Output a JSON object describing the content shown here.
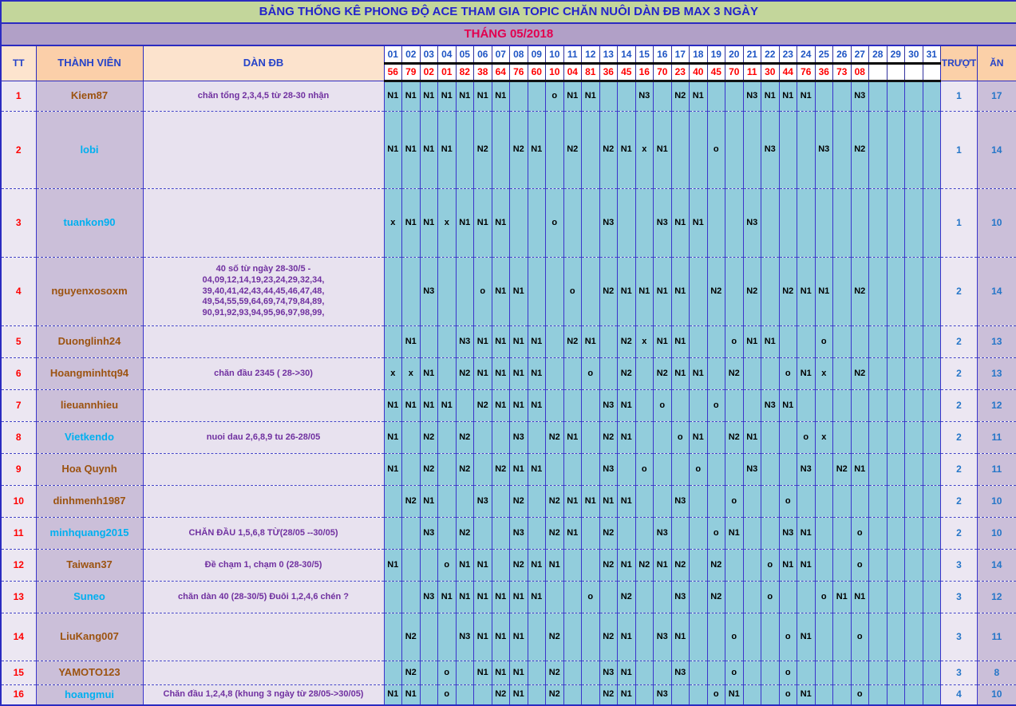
{
  "title": "BẢNG THỐNG KÊ PHONG ĐỘ ACE THAM GIA TOPIC CHĂN NUÔI DÀN ĐB MAX 3 NGÀY",
  "month": "THÁNG 05/2018",
  "headers": {
    "tt": "TT",
    "member": "THÀNH VIÊN",
    "dandb": "DÀN ĐB",
    "truot": "TRƯỢT",
    "an": "ĂN"
  },
  "days": [
    "01",
    "02",
    "03",
    "04",
    "05",
    "06",
    "07",
    "08",
    "09",
    "10",
    "11",
    "12",
    "13",
    "14",
    "15",
    "16",
    "17",
    "18",
    "19",
    "20",
    "21",
    "22",
    "23",
    "24",
    "25",
    "26",
    "27",
    "28",
    "29",
    "30",
    "31"
  ],
  "draw_numbers": [
    "56",
    "79",
    "02",
    "01",
    "82",
    "38",
    "64",
    "76",
    "60",
    "10",
    "04",
    "81",
    "36",
    "45",
    "16",
    "70",
    "23",
    "40",
    "45",
    "70",
    "11",
    "30",
    "44",
    "76",
    "36",
    "73",
    "08",
    "",
    "",
    "",
    ""
  ],
  "colors": {
    "title_bg": "#C3D69B",
    "title_text": "#2323CC",
    "month_bg": "#B1A0C7",
    "month_text": "#E2004F",
    "header_peach": "#FBD0A8",
    "grid_teal": "#92CDDC",
    "lavender_light": "#ECE7F2",
    "purple_light": "#CBBFD9",
    "name_brown": "#9C5310",
    "name_cyan": "#00B0F0",
    "dandb_purple": "#7030A0",
    "day_number_blue": "#1F55C4",
    "draw_number_red": "#FF0000",
    "result_blue": "#2576C8"
  },
  "rows": [
    {
      "tt": "1",
      "member": "Kiem87",
      "name_color": "brown",
      "dandb": "chăn tổng 2,3,4,5 từ 28-30 nhận",
      "cells": [
        "N1",
        "N1",
        "N1",
        "N1",
        "N1",
        "N1",
        "N1",
        "",
        "",
        "o",
        "N1",
        "N1",
        "",
        "",
        "N3",
        "",
        "N2",
        "N1",
        "",
        "",
        "N3",
        "N1",
        "N1",
        "N1",
        "",
        "",
        "N3",
        "",
        "",
        "",
        ""
      ],
      "truot": "1",
      "an": "17"
    },
    {
      "tt": "2",
      "member": "lobi",
      "name_color": "cyan",
      "dandb": "",
      "cells": [
        "N1",
        "N1",
        "N1",
        "N1",
        "",
        "N2",
        "",
        "N2",
        "N1",
        "",
        "N2",
        "",
        "N2",
        "N1",
        "x",
        "N1",
        "",
        "",
        "o",
        "",
        "",
        "N3",
        "",
        "",
        "N3",
        "",
        "N2",
        "",
        "",
        "",
        ""
      ],
      "truot": "1",
      "an": "14"
    },
    {
      "tt": "3",
      "member": "tuankon90",
      "name_color": "cyan",
      "dandb": "",
      "cells": [
        "x",
        "N1",
        "N1",
        "x",
        "N1",
        "N1",
        "N1",
        "",
        "",
        "o",
        "",
        "",
        "N3",
        "",
        "",
        "N3",
        "N1",
        "N1",
        "",
        "",
        "N3",
        "",
        "",
        "",
        "",
        "",
        "",
        "",
        "",
        "",
        ""
      ],
      "truot": "1",
      "an": "10"
    },
    {
      "tt": "4",
      "member": "nguyenxosoxm",
      "name_color": "brown",
      "dandb": "40 số từ ngày 28-30/5 -\n04,09,12,14,19,23,24,29,32,34,\n39,40,41,42,43,44,45,46,47,48,\n49,54,55,59,64,69,74,79,84,89,\n90,91,92,93,94,95,96,97,98,99,",
      "cells": [
        "",
        "",
        "N3",
        "",
        "",
        "o",
        "N1",
        "N1",
        "",
        "",
        "o",
        "",
        "N2",
        "N1",
        "N1",
        "N1",
        "N1",
        "",
        "N2",
        "",
        "N2",
        "",
        "N2",
        "N1",
        "N1",
        "",
        "N2",
        "",
        "",
        "",
        ""
      ],
      "truot": "2",
      "an": "14"
    },
    {
      "tt": "5",
      "member": "Duonglinh24",
      "name_color": "brown",
      "dandb": "",
      "cells": [
        "",
        "N1",
        "",
        "",
        "N3",
        "N1",
        "N1",
        "N1",
        "N1",
        "",
        "N2",
        "N1",
        "",
        "N2",
        "x",
        "N1",
        "N1",
        "",
        "",
        "o",
        "N1",
        "N1",
        "",
        "",
        "o",
        "",
        "",
        "",
        "",
        "",
        ""
      ],
      "truot": "2",
      "an": "13"
    },
    {
      "tt": "6",
      "member": "Hoangminhtq94",
      "name_color": "brown",
      "dandb": "chăn đầu 2345 ( 28->30)",
      "cells": [
        "x",
        "x",
        "N1",
        "",
        "N2",
        "N1",
        "N1",
        "N1",
        "N1",
        "",
        "",
        "o",
        "",
        "N2",
        "",
        "N2",
        "N1",
        "N1",
        "",
        "N2",
        "",
        "",
        "o",
        "N1",
        "x",
        "",
        "N2",
        "",
        "",
        "",
        ""
      ],
      "truot": "2",
      "an": "13"
    },
    {
      "tt": "7",
      "member": "lieuannhieu",
      "name_color": "brown",
      "dandb": "",
      "cells": [
        "N1",
        "N1",
        "N1",
        "N1",
        "",
        "N2",
        "N1",
        "N1",
        "N1",
        "",
        "",
        "",
        "N3",
        "N1",
        "",
        "o",
        "",
        "",
        "o",
        "",
        "",
        "N3",
        "N1",
        "",
        "",
        "",
        "",
        "",
        "",
        "",
        ""
      ],
      "truot": "2",
      "an": "12"
    },
    {
      "tt": "8",
      "member": "Vietkendo",
      "name_color": "cyan",
      "dandb": "nuoi dau 2,6,8,9 tu 26-28/05",
      "cells": [
        "N1",
        "",
        "N2",
        "",
        "N2",
        "",
        "",
        "N3",
        "",
        "N2",
        "N1",
        "",
        "N2",
        "N1",
        "",
        "",
        "o",
        "N1",
        "",
        "N2",
        "N1",
        "",
        "",
        "o",
        "x",
        "",
        "",
        "",
        "",
        "",
        ""
      ],
      "truot": "2",
      "an": "11"
    },
    {
      "tt": "9",
      "member": "Hoa Quynh",
      "name_color": "brown",
      "dandb": "",
      "cells": [
        "N1",
        "",
        "N2",
        "",
        "N2",
        "",
        "N2",
        "N1",
        "N1",
        "",
        "",
        "",
        "N3",
        "",
        "o",
        "",
        "",
        "o",
        "",
        "",
        "N3",
        "",
        "",
        "N3",
        "",
        "N2",
        "N1",
        "",
        "",
        "",
        ""
      ],
      "truot": "2",
      "an": "11"
    },
    {
      "tt": "10",
      "member": "dinhmenh1987",
      "name_color": "brown",
      "dandb": "",
      "cells": [
        "",
        "N2",
        "N1",
        "",
        "",
        "N3",
        "",
        "N2",
        "",
        "N2",
        "N1",
        "N1",
        "N1",
        "N1",
        "",
        "",
        "N3",
        "",
        "",
        "o",
        "",
        "",
        "o",
        "",
        "",
        "",
        "",
        "",
        "",
        "",
        ""
      ],
      "truot": "2",
      "an": "10"
    },
    {
      "tt": "11",
      "member": "minhquang2015",
      "name_color": "cyan",
      "dandb": "CHĂN ĐẦU 1,5,6,8 TỪ(28/05 --30/05)",
      "cells": [
        "",
        "",
        "N3",
        "",
        "N2",
        "",
        "",
        "N3",
        "",
        "N2",
        "N1",
        "",
        "N2",
        "",
        "",
        "N3",
        "",
        "",
        "o",
        "N1",
        "",
        "",
        "N3",
        "N1",
        "",
        "",
        "o",
        "",
        "",
        "",
        ""
      ],
      "truot": "2",
      "an": "10"
    },
    {
      "tt": "12",
      "member": "Taiwan37",
      "name_color": "brown",
      "dandb": "Đề chạm 1, chạm 0 (28-30/5)",
      "cells": [
        "N1",
        "",
        "",
        "o",
        "N1",
        "N1",
        "",
        "N2",
        "N1",
        "N1",
        "",
        "",
        "N2",
        "N1",
        "N2",
        "N1",
        "N2",
        "",
        "N2",
        "",
        "",
        "o",
        "N1",
        "N1",
        "",
        "",
        "o",
        "",
        "",
        "",
        ""
      ],
      "truot": "3",
      "an": "14"
    },
    {
      "tt": "13",
      "member": "Suneo",
      "name_color": "cyan",
      "dandb": "chăn dàn 40  (28-30/5) Đuôi 1,2,4,6 chén ?",
      "cells": [
        "",
        "",
        "N3",
        "N1",
        "N1",
        "N1",
        "N1",
        "N1",
        "N1",
        "",
        "",
        "o",
        "",
        "N2",
        "",
        "",
        "N3",
        "",
        "N2",
        "",
        "",
        "o",
        "",
        "",
        "o",
        "N1",
        "N1",
        "",
        "",
        "",
        ""
      ],
      "truot": "3",
      "an": "12"
    },
    {
      "tt": "14",
      "member": "LiuKang007",
      "name_color": "brown",
      "dandb": "",
      "cells": [
        "",
        "N2",
        "",
        "",
        "N3",
        "N1",
        "N1",
        "N1",
        "",
        "N2",
        "",
        "",
        "N2",
        "N1",
        "",
        "N3",
        "N1",
        "",
        "",
        "o",
        "",
        "",
        "o",
        "N1",
        "",
        "",
        "o",
        "",
        "",
        "",
        ""
      ],
      "truot": "3",
      "an": "11"
    },
    {
      "tt": "15",
      "member": "YAMOTO123",
      "name_color": "brown",
      "dandb": "",
      "cells": [
        "",
        "N2",
        "",
        "o",
        "",
        "N1",
        "N1",
        "N1",
        "",
        "N2",
        "",
        "",
        "N3",
        "N1",
        "",
        "",
        "N3",
        "",
        "",
        "o",
        "",
        "",
        "o",
        "",
        "",
        "",
        "",
        "",
        "",
        "",
        ""
      ],
      "truot": "3",
      "an": "8"
    },
    {
      "tt": "16",
      "member": "hoangmui",
      "name_color": "cyan",
      "dandb": "Chăn đầu 1,2,4,8 (khung 3 ngày từ 28/05->30/05)",
      "cells": [
        "N1",
        "N1",
        "",
        "o",
        "",
        "",
        "N2",
        "N1",
        "",
        "N2",
        "",
        "",
        "N2",
        "N1",
        "",
        "N3",
        "",
        "",
        "o",
        "N1",
        "",
        "",
        "o",
        "N1",
        "",
        "",
        "o",
        "",
        "",
        "",
        ""
      ],
      "truot": "4",
      "an": "10"
    }
  ]
}
